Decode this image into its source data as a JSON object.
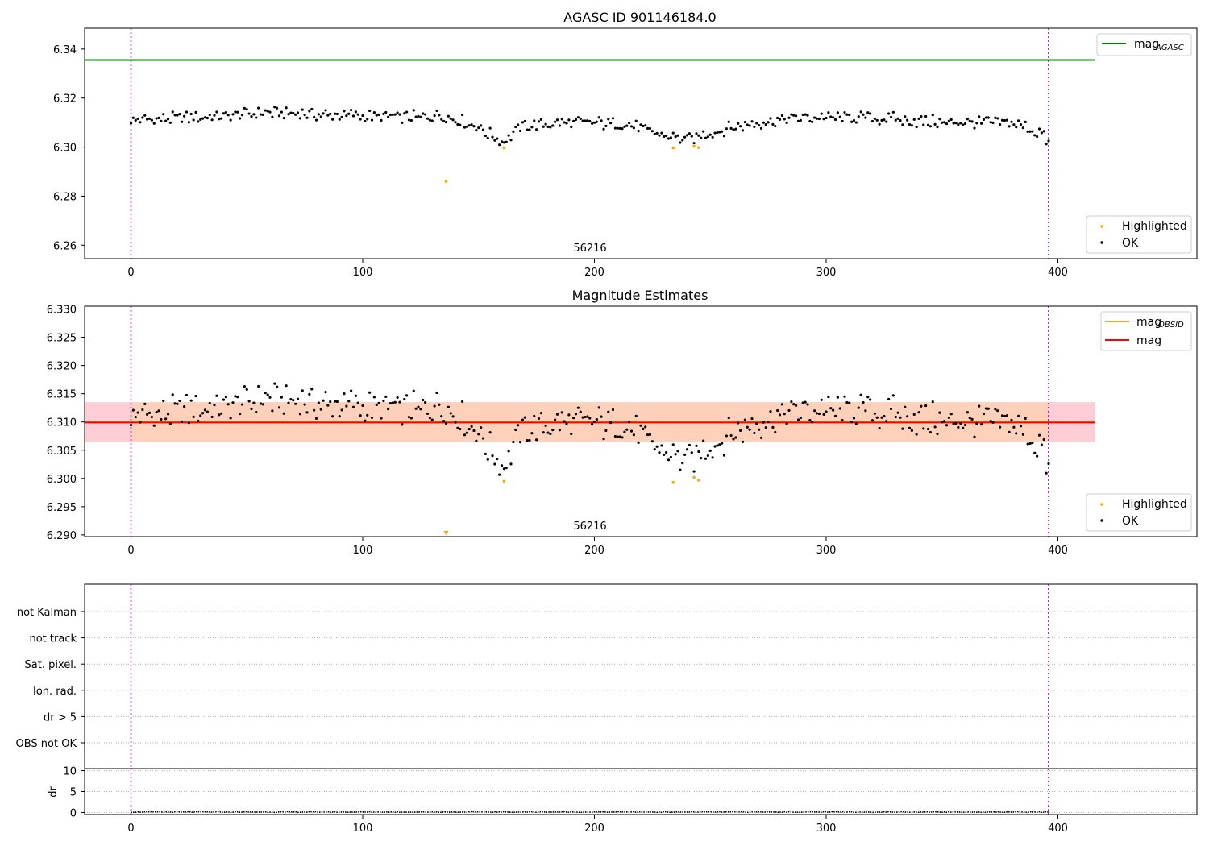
{
  "panels": {
    "top": {
      "title": "AGASC ID 901146184.0",
      "annotation": "56216",
      "ylim": [
        6.2545,
        6.3485
      ],
      "yticks": [
        "6.26",
        "6.28",
        "6.30",
        "6.32",
        "6.34"
      ],
      "legend_upper": {
        "label": "mag",
        "subscript": "AGASC",
        "color": "#008000"
      },
      "legend_lower": [
        {
          "label": "Highlighted",
          "color": "#ffa500"
        },
        {
          "label": "OK",
          "color": "#000000"
        }
      ]
    },
    "middle": {
      "title": "Magnitude Estimates",
      "annotation": "56216",
      "ylim": [
        6.2897,
        6.3305
      ],
      "yticks": [
        "6.290",
        "6.295",
        "6.300",
        "6.305",
        "6.310",
        "6.315",
        "6.320",
        "6.325",
        "6.330"
      ],
      "legend_upper": [
        {
          "label": "mag",
          "subscript": "OBSID",
          "color": "#ffa500"
        },
        {
          "label": "mag",
          "subscript": "",
          "color": "#ff0000"
        }
      ],
      "legend_lower": [
        {
          "label": "Highlighted",
          "color": "#ffa500"
        },
        {
          "label": "OK",
          "color": "#000000"
        }
      ]
    },
    "flags": {
      "categories": [
        "not Kalman",
        "not track",
        "Sat. pixel.",
        "Ion. rad.",
        "dr > 5",
        "OBS not OK"
      ]
    },
    "dr": {
      "ylabel": "dr",
      "yticks": [
        "0",
        "5",
        "10"
      ],
      "ylim": [
        -0.5,
        10.5
      ]
    }
  },
  "xaxis": {
    "xlim": [
      -20,
      460
    ],
    "xticks": [
      "0",
      "100",
      "200",
      "300",
      "400"
    ]
  },
  "chart_data": [
    {
      "type": "scatter",
      "title": "AGASC ID 901146184.0",
      "xlim": [
        -20,
        460
      ],
      "ylim": [
        6.2545,
        6.3485
      ],
      "lines": [
        {
          "name": "mag_AGASC",
          "y": 6.3355,
          "x_range": [
            -20,
            416
          ],
          "color": "#008000"
        }
      ],
      "vlines": [
        {
          "x": 0,
          "color": "#800080",
          "style": "dotted"
        },
        {
          "x": 396,
          "color": "#800080",
          "style": "dotted"
        }
      ],
      "series": [
        {
          "name": "OK",
          "color": "#000000",
          "profile": [
            [
              0,
              6.311
            ],
            [
              30,
              6.312
            ],
            [
              60,
              6.314
            ],
            [
              90,
              6.313
            ],
            [
              120,
              6.312
            ],
            [
              135,
              6.313
            ],
            [
              150,
              6.308
            ],
            [
              160,
              6.302
            ],
            [
              170,
              6.309
            ],
            [
              190,
              6.31
            ],
            [
              215,
              6.309
            ],
            [
              230,
              6.305
            ],
            [
              240,
              6.303
            ],
            [
              255,
              6.307
            ],
            [
              270,
              6.31
            ],
            [
              290,
              6.312
            ],
            [
              320,
              6.312
            ],
            [
              350,
              6.31
            ],
            [
              380,
              6.31
            ],
            [
              392,
              6.306
            ],
            [
              396,
              6.302
            ]
          ],
          "noise_amplitude": 0.003,
          "n_points": 397
        },
        {
          "name": "Highlighted",
          "color": "#ffa500",
          "points": [
            [
              136,
              6.286
            ],
            [
              161,
              6.2997
            ],
            [
              234,
              6.2997
            ],
            [
              243,
              6.3003
            ],
            [
              245,
              6.2998
            ]
          ]
        }
      ]
    },
    {
      "type": "scatter",
      "title": "Magnitude Estimates",
      "xlim": [
        -20,
        460
      ],
      "ylim": [
        6.2897,
        6.3305
      ],
      "lines": [
        {
          "name": "mag_OBSID",
          "y": 6.31,
          "x_range": [
            -20,
            416
          ],
          "color": "#ffa500"
        },
        {
          "name": "mag",
          "y": 6.3099,
          "x_range": [
            -20,
            416
          ],
          "color": "#ff0000"
        }
      ],
      "bands": [
        {
          "y_range": [
            6.3065,
            6.3135
          ],
          "x_range": [
            -20,
            416
          ],
          "color": "#ffc0cb"
        },
        {
          "y_range": [
            6.3065,
            6.3135
          ],
          "x_range": [
            0,
            396
          ],
          "color": "#ffd2b4"
        }
      ],
      "vlines": [
        {
          "x": 0,
          "color": "#800080",
          "style": "dotted"
        },
        {
          "x": 396,
          "color": "#800080",
          "style": "dotted"
        }
      ],
      "series": [
        {
          "name": "OK",
          "color": "#000000",
          "profile": [
            [
              0,
              6.311
            ],
            [
              30,
              6.312
            ],
            [
              60,
              6.314
            ],
            [
              90,
              6.313
            ],
            [
              120,
              6.312
            ],
            [
              135,
              6.313
            ],
            [
              150,
              6.308
            ],
            [
              160,
              6.302
            ],
            [
              170,
              6.309
            ],
            [
              190,
              6.31
            ],
            [
              215,
              6.309
            ],
            [
              230,
              6.305
            ],
            [
              240,
              6.303
            ],
            [
              255,
              6.307
            ],
            [
              270,
              6.31
            ],
            [
              290,
              6.312
            ],
            [
              320,
              6.312
            ],
            [
              350,
              6.31
            ],
            [
              380,
              6.31
            ],
            [
              392,
              6.306
            ],
            [
              396,
              6.302
            ]
          ],
          "noise_amplitude": 0.0035,
          "n_points": 397
        },
        {
          "name": "Highlighted",
          "color": "#ffa500",
          "points": [
            [
              161,
              6.2995
            ],
            [
              234,
              6.2993
            ],
            [
              243,
              6.3002
            ],
            [
              245,
              6.2997
            ]
          ],
          "out_of_range_markers": [
            {
              "x": 136,
              "direction": "below"
            }
          ]
        }
      ]
    },
    {
      "type": "scatter",
      "title": "",
      "categories": [
        "not Kalman",
        "not track",
        "Sat. pixel.",
        "Ion. rad.",
        "dr > 5",
        "OBS not OK"
      ],
      "series": []
    },
    {
      "type": "line",
      "ylabel": "dr",
      "xlim": [
        -20,
        460
      ],
      "ylim": [
        -0.5,
        10.5
      ],
      "series": [
        {
          "name": "dr",
          "color": "#000000",
          "x_range": [
            0,
            396
          ],
          "approx_value": 0.1
        }
      ]
    }
  ]
}
